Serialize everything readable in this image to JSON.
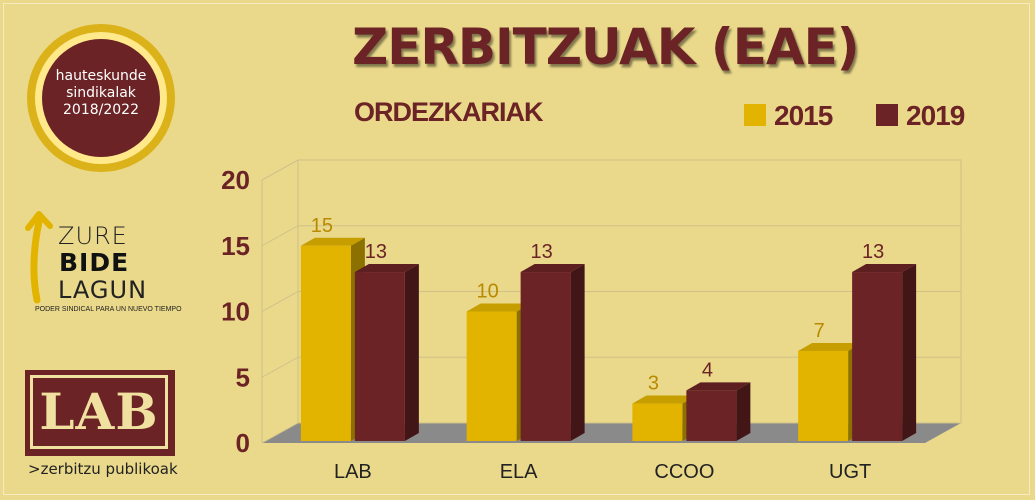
{
  "badge": {
    "line1": "hauteskunde",
    "line2": "sindikalak",
    "line3": "2018/2022"
  },
  "zbl": {
    "line1": "ZURE",
    "line2": "BIDE",
    "line3": "LAGUN",
    "tagline": "PODER SINDICAL PARA UN NUEVO TIEMPO"
  },
  "lab_logo": {
    "text": "LAB",
    "subtitle": ">zerbitzu publikoak"
  },
  "colors": {
    "bg": "#ead98b",
    "series2015": "#e2b400",
    "series2019": "#6b2325",
    "title": "#6b2325"
  },
  "chart_data": {
    "type": "bar",
    "title": "ZERBITZUAK (EAE)",
    "subtitle": "ORDEZKARIAK",
    "categories": [
      "LAB",
      "ELA",
      "CCOO",
      "UGT"
    ],
    "series": [
      {
        "name": "2015",
        "values": [
          15,
          10,
          3,
          7
        ],
        "color": "#e2b400"
      },
      {
        "name": "2019",
        "values": [
          13,
          13,
          4,
          13
        ],
        "color": "#6b2325"
      }
    ],
    "ylim": [
      0,
      20
    ],
    "yticks": [
      0,
      5,
      10,
      15,
      20
    ],
    "grid": true,
    "legend": "top-right",
    "xlabel": "",
    "ylabel": ""
  }
}
